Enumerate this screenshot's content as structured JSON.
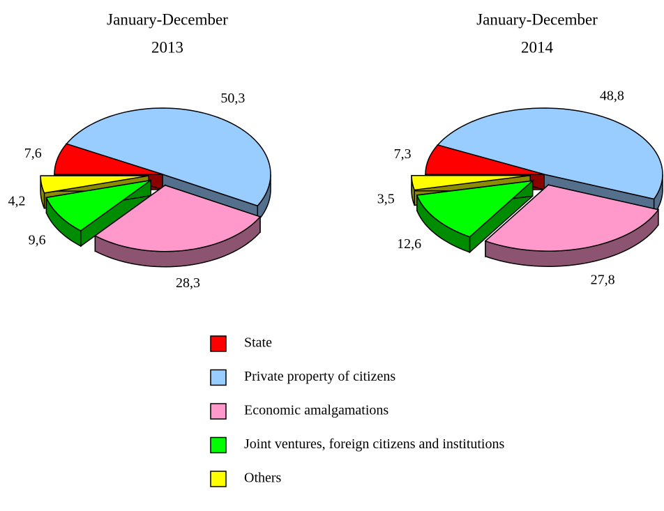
{
  "chart_data": [
    {
      "type": "pie",
      "title": "January-December",
      "subtitle": "2013",
      "categories": [
        "State",
        "Private property of citizens",
        "Economic amalgamations",
        "Joint ventures, foreign citizens and institutions",
        "Others"
      ],
      "values": [
        7.6,
        50.3,
        28.3,
        9.6,
        4.2
      ],
      "value_labels": [
        "7,6",
        "50,3",
        "28,3",
        "9,6",
        "4,2"
      ],
      "colors": [
        "#ff0000",
        "#99ccff",
        "#ff99cc",
        "#00ff00",
        "#ffff00"
      ]
    },
    {
      "type": "pie",
      "title": "January-December",
      "subtitle": "2014",
      "values": [
        7.3,
        48.8,
        27.8,
        12.6,
        3.5
      ],
      "value_labels": [
        "7,3",
        "48,8",
        "27,8",
        "12,6",
        "3,5"
      ],
      "colors": [
        "#ff0000",
        "#99ccff",
        "#ff99cc",
        "#00ff00",
        "#ffff00"
      ]
    }
  ]
}
